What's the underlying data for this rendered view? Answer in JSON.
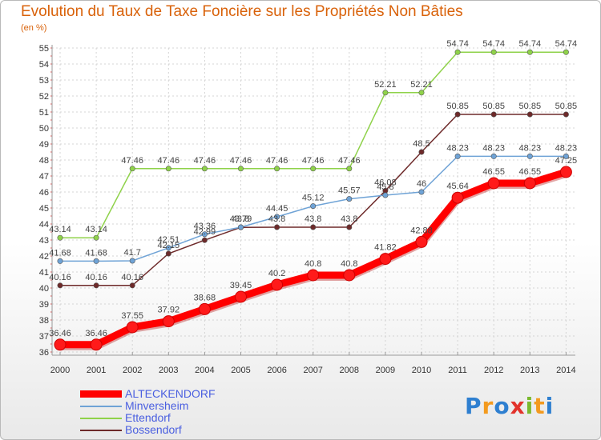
{
  "header": {
    "title": "Evolution du Taux de Taxe Foncière sur les Propriétés Non Bâties",
    "unit": "(en %)"
  },
  "logo": {
    "text": "Proxiti",
    "colors": [
      "#2e7fd0",
      "#f39a1e",
      "#2e7fd0",
      "#e2322b",
      "#7ab92e",
      "#f39a1e",
      "#2e7fd0"
    ]
  },
  "chart_data": {
    "type": "line",
    "title": "Evolution du Taux de Taxe Foncière sur les Propriétés Non Bâties",
    "ylabel": "(en %)",
    "xlabel": "",
    "ylim": [
      36,
      55
    ],
    "yticks": [
      36,
      37,
      38,
      39,
      40,
      41,
      42,
      43,
      44,
      45,
      46,
      47,
      48,
      49,
      50,
      51,
      52,
      53,
      54,
      55
    ],
    "x": [
      "2000",
      "2001",
      "2002",
      "2003",
      "2004",
      "2005",
      "2006",
      "2007",
      "2008",
      "2009",
      "2010",
      "2011",
      "2012",
      "2013",
      "2014"
    ],
    "grid": true,
    "legend_position": "bottom-left",
    "series": [
      {
        "name": "Ettendorf",
        "color": "#8fd24a",
        "values": [
          43.14,
          43.14,
          47.46,
          47.46,
          47.46,
          47.46,
          47.46,
          47.46,
          47.46,
          52.21,
          52.21,
          54.74,
          54.74,
          54.74,
          54.74
        ],
        "labels": [
          "43.14",
          "43.14",
          "47.46",
          "47.46",
          "47.46",
          "47.46",
          "47.46",
          "47.46",
          "47.46",
          "52.21",
          "52.21",
          "54.74",
          "54.74",
          "54.74",
          "54.74"
        ]
      },
      {
        "name": "Bossendorf",
        "color": "#6e2a2a",
        "values": [
          40.16,
          40.16,
          40.16,
          42.15,
          42.99,
          43.79,
          43.8,
          43.8,
          43.8,
          46.08,
          48.5,
          50.85,
          50.85,
          50.85,
          50.85
        ],
        "labels": [
          "40.16",
          "40.16",
          "40.16",
          "42.15",
          "42.99",
          "43.79",
          "43.8",
          "43.8",
          "43.8",
          "46.08",
          "48.5",
          "50.85",
          "50.85",
          "50.85",
          "50.85"
        ]
      },
      {
        "name": "Minversheim",
        "color": "#6fa3d6",
        "values": [
          41.68,
          41.68,
          41.7,
          42.51,
          43.36,
          43.8,
          44.45,
          45.12,
          45.57,
          45.8,
          46,
          48.23,
          48.23,
          48.23,
          48.23
        ],
        "labels": [
          "41.68",
          "41.68",
          "41.7",
          "42.51",
          "43.36",
          "43.8",
          "44.45",
          "45.12",
          "45.57",
          "45.8",
          "46",
          "48.23",
          "48.23",
          "48.23",
          "48.23"
        ]
      },
      {
        "name": "ALTECKENDORF",
        "color": "#ff0000",
        "values": [
          36.46,
          36.46,
          37.55,
          37.92,
          38.68,
          39.45,
          40.2,
          40.8,
          40.8,
          41.82,
          42.88,
          45.64,
          46.55,
          46.55,
          47.25
        ],
        "labels": [
          "36.46",
          "36.46",
          "37.55",
          "37.92",
          "38.68",
          "39.45",
          "40.2",
          "40.8",
          "40.8",
          "41.82",
          "42.88",
          "45.64",
          "46.55",
          "46.55",
          "47.25"
        ]
      }
    ],
    "legend": [
      {
        "name": "ALTECKENDORF",
        "color": "#ff0000"
      },
      {
        "name": "Minversheim",
        "color": "#6fa3d6"
      },
      {
        "name": "Ettendorf",
        "color": "#8fd24a"
      },
      {
        "name": "Bossendorf",
        "color": "#6e2a2a"
      }
    ]
  }
}
